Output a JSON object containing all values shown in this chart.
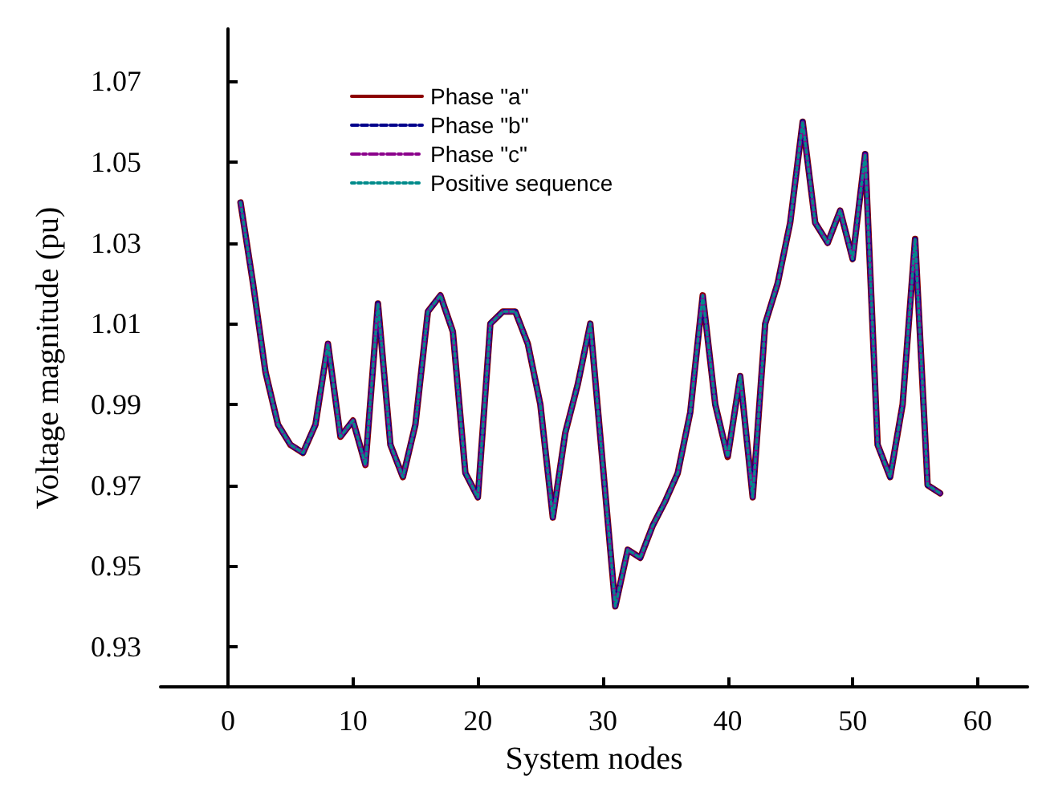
{
  "chart_data": {
    "type": "line",
    "xlabel": "System nodes",
    "ylabel": "Voltage magnitude (pu)",
    "x": [
      1,
      2,
      3,
      4,
      5,
      6,
      7,
      8,
      9,
      10,
      11,
      12,
      13,
      14,
      15,
      16,
      17,
      18,
      19,
      20,
      21,
      22,
      23,
      24,
      25,
      26,
      27,
      28,
      29,
      30,
      31,
      32,
      33,
      34,
      35,
      36,
      37,
      38,
      39,
      40,
      41,
      42,
      43,
      44,
      45,
      46,
      47,
      48,
      49,
      50,
      51,
      52,
      53,
      54,
      55,
      56,
      57
    ],
    "series": [
      {
        "name": "Phase \"a\"",
        "color": "#8b0000",
        "line_style": "solid",
        "values": [
          1.04,
          1.02,
          0.998,
          0.985,
          0.98,
          0.978,
          0.985,
          1.005,
          0.982,
          0.986,
          0.975,
          1.015,
          0.98,
          0.972,
          0.985,
          1.013,
          1.017,
          1.008,
          0.973,
          0.967,
          1.01,
          1.013,
          1.013,
          1.005,
          0.99,
          0.962,
          0.983,
          0.995,
          1.01,
          0.975,
          0.94,
          0.954,
          0.952,
          0.96,
          0.966,
          0.973,
          0.988,
          1.017,
          0.99,
          0.977,
          0.997,
          0.967,
          1.01,
          1.02,
          1.035,
          1.06,
          1.035,
          1.03,
          1.038,
          1.026,
          1.052,
          0.98,
          0.972,
          0.99,
          1.031,
          0.97,
          0.968
        ]
      },
      {
        "name": "Phase \"b\"",
        "color": "#00008b",
        "line_style": "dashed",
        "values": [
          1.04,
          1.02,
          0.998,
          0.985,
          0.98,
          0.978,
          0.985,
          1.005,
          0.982,
          0.986,
          0.975,
          1.015,
          0.98,
          0.972,
          0.985,
          1.013,
          1.017,
          1.008,
          0.973,
          0.967,
          1.01,
          1.013,
          1.013,
          1.005,
          0.99,
          0.962,
          0.983,
          0.995,
          1.01,
          0.975,
          0.94,
          0.954,
          0.952,
          0.96,
          0.966,
          0.973,
          0.988,
          1.017,
          0.99,
          0.977,
          0.997,
          0.967,
          1.01,
          1.02,
          1.035,
          1.06,
          1.035,
          1.03,
          1.038,
          1.026,
          1.052,
          0.98,
          0.972,
          0.99,
          1.031,
          0.97,
          0.968
        ]
      },
      {
        "name": "Phase \"c\"",
        "color": "#8b008b",
        "line_style": "dashdot",
        "values": [
          1.04,
          1.02,
          0.998,
          0.985,
          0.98,
          0.978,
          0.985,
          1.005,
          0.982,
          0.986,
          0.975,
          1.015,
          0.98,
          0.972,
          0.985,
          1.013,
          1.017,
          1.008,
          0.973,
          0.967,
          1.01,
          1.013,
          1.013,
          1.005,
          0.99,
          0.962,
          0.983,
          0.995,
          1.01,
          0.975,
          0.94,
          0.954,
          0.952,
          0.96,
          0.966,
          0.973,
          0.988,
          1.017,
          0.99,
          0.977,
          0.997,
          0.967,
          1.01,
          1.02,
          1.035,
          1.06,
          1.035,
          1.03,
          1.038,
          1.026,
          1.052,
          0.98,
          0.972,
          0.99,
          1.031,
          0.97,
          0.968
        ]
      },
      {
        "name": "Positive sequence",
        "color": "#008b8b",
        "line_style": "dotted",
        "values": [
          1.04,
          1.02,
          0.998,
          0.985,
          0.98,
          0.978,
          0.985,
          1.005,
          0.982,
          0.986,
          0.975,
          1.015,
          0.98,
          0.972,
          0.985,
          1.013,
          1.017,
          1.008,
          0.973,
          0.967,
          1.01,
          1.013,
          1.013,
          1.005,
          0.99,
          0.962,
          0.983,
          0.995,
          1.01,
          0.975,
          0.94,
          0.954,
          0.952,
          0.96,
          0.966,
          0.973,
          0.988,
          1.017,
          0.99,
          0.977,
          0.997,
          0.967,
          1.01,
          1.02,
          1.035,
          1.06,
          1.035,
          1.03,
          1.038,
          1.026,
          1.052,
          0.98,
          0.972,
          0.99,
          1.031,
          0.97,
          0.968
        ]
      }
    ],
    "xlim": [
      -5.4,
      64
    ],
    "xticks": [
      0,
      10,
      20,
      30,
      40,
      50,
      60
    ],
    "ylim": [
      0.92,
      1.083
    ],
    "yticks": [
      0.93,
      0.95,
      0.97,
      0.99,
      1.01,
      1.03,
      1.05,
      1.07
    ],
    "legend": "top left",
    "marker": "none"
  }
}
